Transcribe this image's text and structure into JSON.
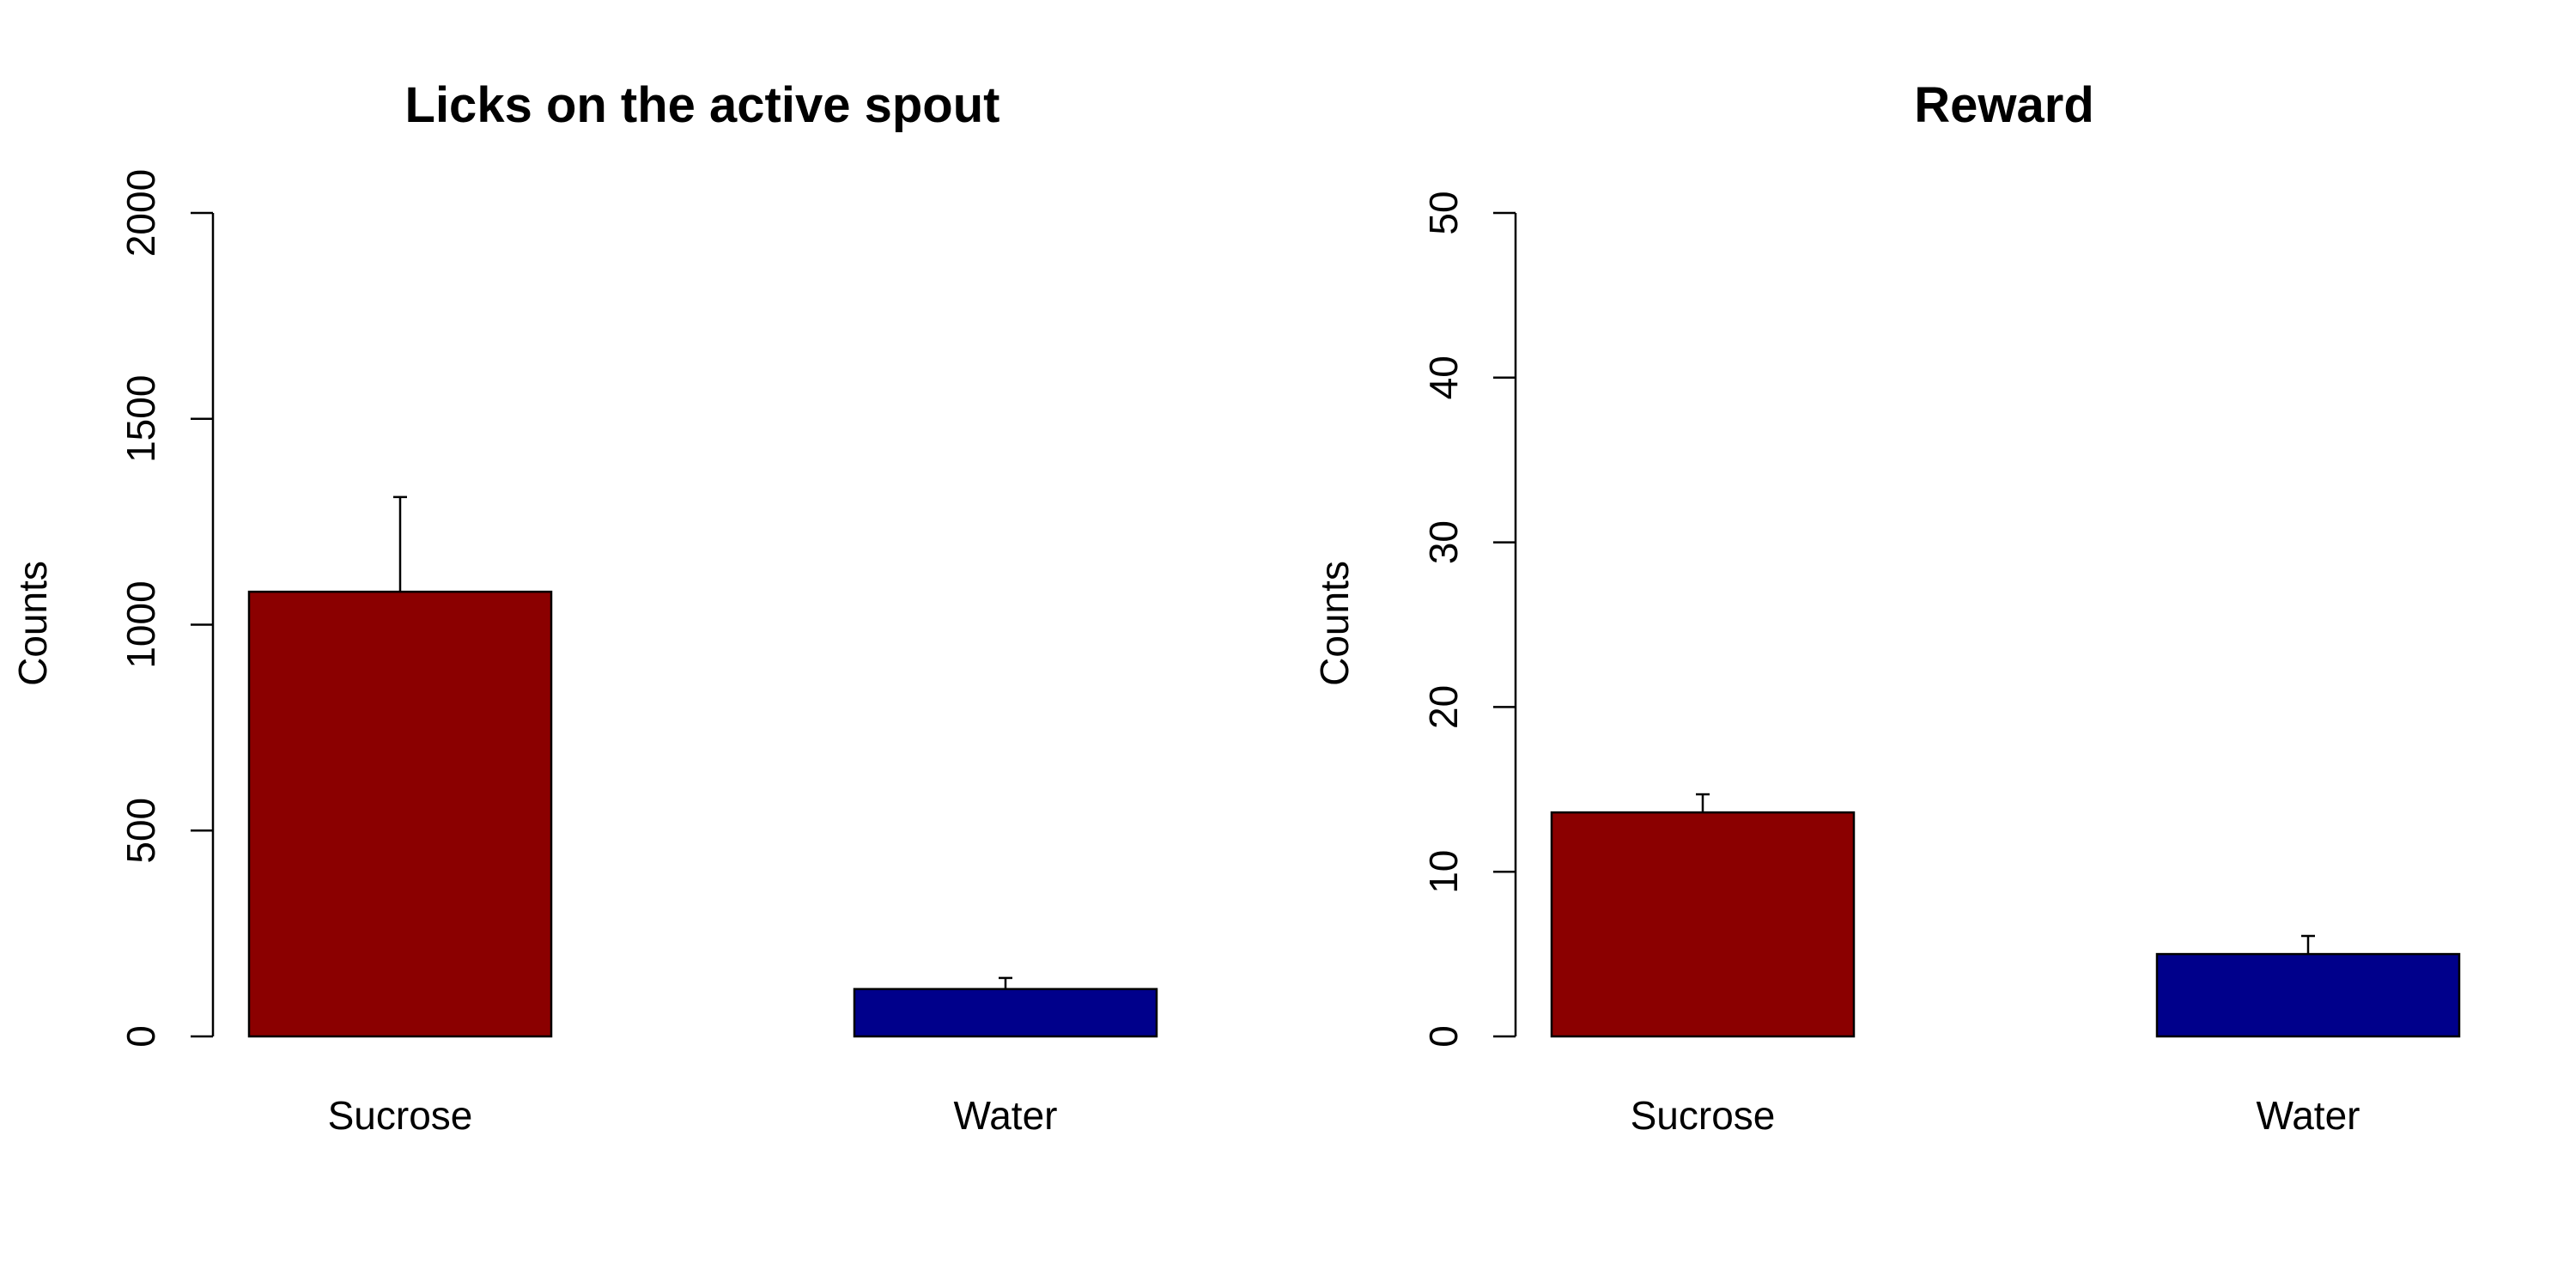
{
  "chart_data": [
    {
      "type": "bar",
      "title": "Licks on the active spout",
      "xlabel": "",
      "ylabel": "Counts",
      "categories": [
        "Sucrose",
        "Water"
      ],
      "values": [
        1080,
        115
      ],
      "error_upper": [
        1310,
        142
      ],
      "colors": [
        "#8B0000",
        "#00008B"
      ],
      "ylim": [
        0,
        2000
      ],
      "yticks": [
        "0",
        "500",
        "1000",
        "1500",
        "2000"
      ],
      "grid": false
    },
    {
      "type": "bar",
      "title": "Reward",
      "xlabel": "",
      "ylabel": "Counts",
      "categories": [
        "Sucrose",
        "Water"
      ],
      "values": [
        13.6,
        5.0
      ],
      "error_upper": [
        14.7,
        6.1
      ],
      "colors": [
        "#8B0000",
        "#00008B"
      ],
      "ylim": [
        0,
        50
      ],
      "yticks": [
        "0",
        "10",
        "20",
        "30",
        "40",
        "50"
      ],
      "grid": false
    }
  ]
}
